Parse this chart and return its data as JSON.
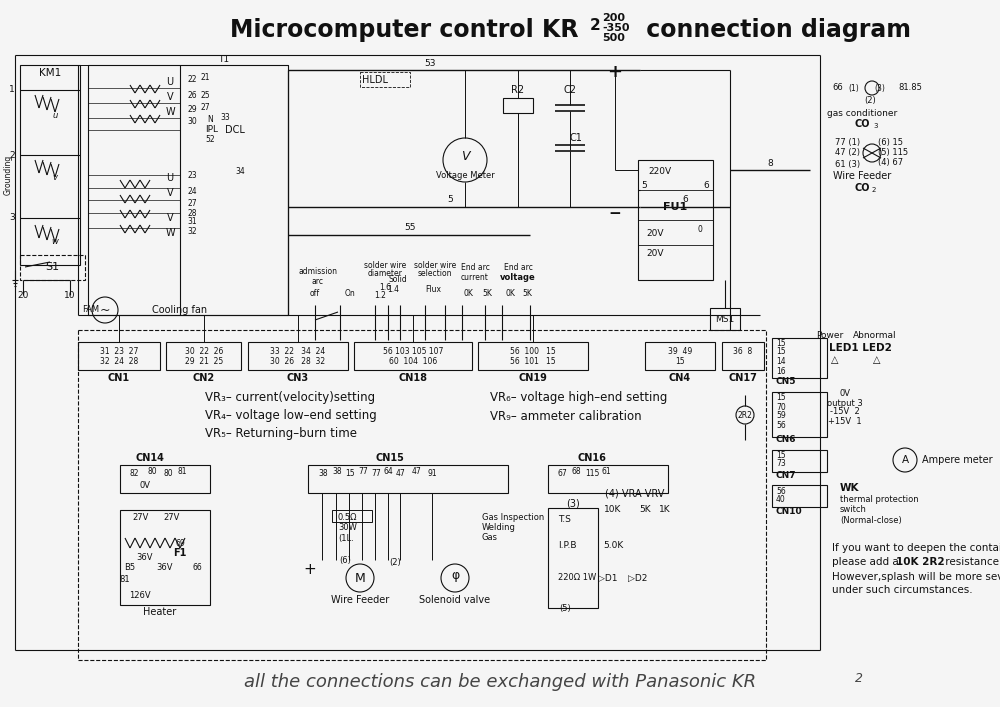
{
  "bg_color": "#f5f5f5",
  "line_color": "#111111",
  "text_color": "#111111",
  "figsize": [
    10.0,
    7.07
  ],
  "dpi": 100,
  "title": "Microcomputer control KR",
  "title_kr_sub": "2",
  "title_nums": [
    "200",
    "-350",
    "500"
  ],
  "title_end": " connection diagram",
  "bottom_text": "all the connections can be exchanged with Panasonic KR",
  "bottom_sub": "2"
}
